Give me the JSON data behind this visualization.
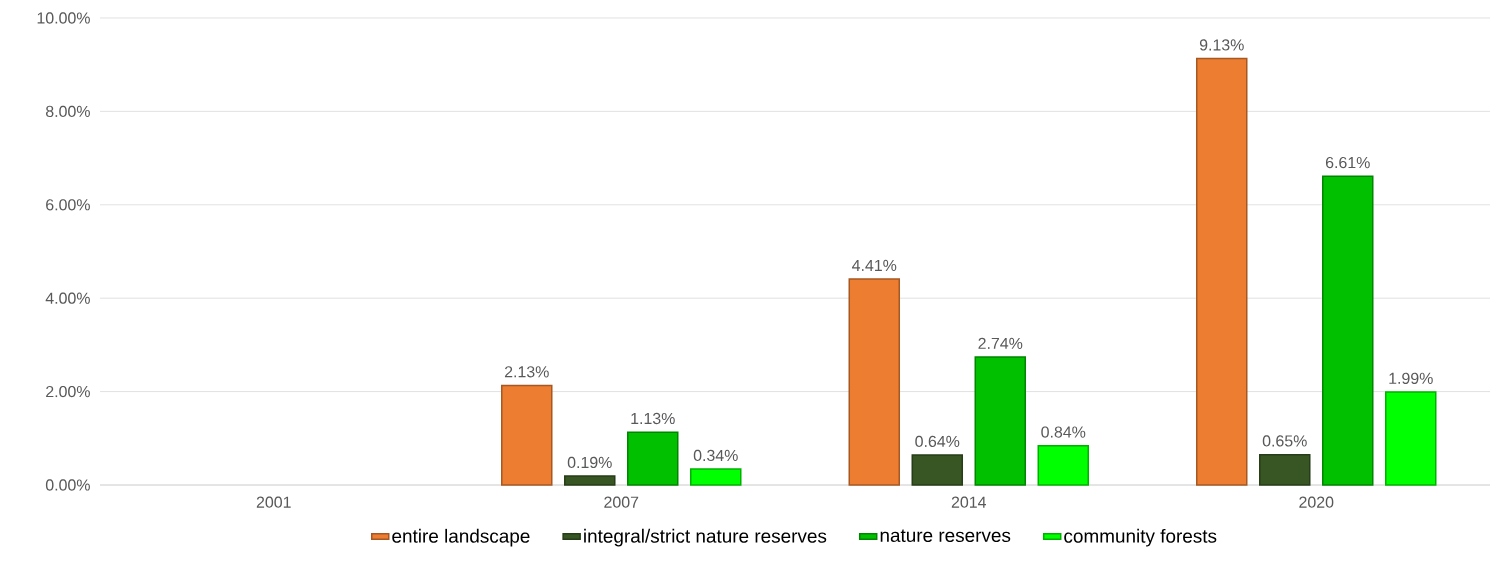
{
  "chart_data": {
    "type": "bar",
    "categories": [
      "2001",
      "2007",
      "2014",
      "2020"
    ],
    "series": [
      {
        "name": "entire landscape",
        "color": "#ed7d31",
        "values": [
          null,
          2.13,
          4.41,
          9.13
        ],
        "value_labels": [
          null,
          "2.13%",
          "4.41%",
          "9.13%"
        ]
      },
      {
        "name": "integral/strict nature reserves",
        "color": "#375623",
        "values": [
          null,
          0.19,
          0.64,
          0.65
        ],
        "value_labels": [
          null,
          "0.19%",
          "0.64%",
          "0.65%"
        ]
      },
      {
        "name": "nature reserves",
        "color": "#00c000",
        "values": [
          null,
          1.13,
          2.74,
          6.61
        ],
        "value_labels": [
          null,
          "1.13%",
          "2.74%",
          "6.61%"
        ]
      },
      {
        "name": "community forests",
        "color": "#00ff00",
        "values": [
          null,
          0.34,
          0.84,
          1.99
        ],
        "value_labels": [
          null,
          "0.34%",
          "0.84%",
          "1.99%"
        ]
      }
    ],
    "ylim": [
      0,
      10
    ],
    "yticks": [
      {
        "value": 0,
        "label": "0.00%"
      },
      {
        "value": 2,
        "label": "2.00%"
      },
      {
        "value": 4,
        "label": "4.00%"
      },
      {
        "value": 6,
        "label": "6.00%"
      },
      {
        "value": 8,
        "label": "8.00%"
      },
      {
        "value": 10,
        "label": "10.00%"
      }
    ],
    "grid": "y",
    "legend": "bottom"
  }
}
